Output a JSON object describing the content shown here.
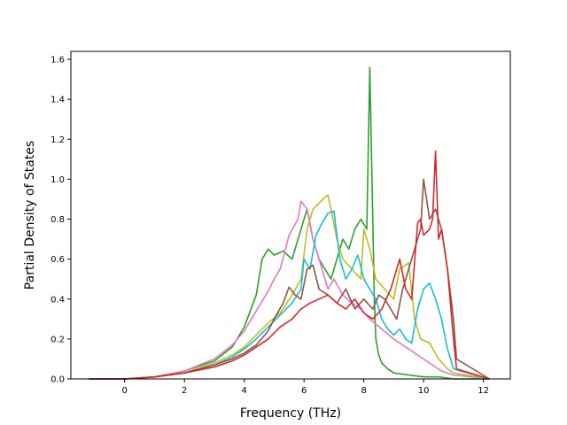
{
  "chart_data": {
    "type": "line",
    "title": "",
    "xlabel": "Frequency (THz)",
    "ylabel": "Partial Density of States",
    "xlim": [
      -1.8,
      12.9
    ],
    "ylim": [
      0.0,
      1.64
    ],
    "xticks": [
      0,
      2,
      4,
      6,
      8,
      10,
      12
    ],
    "yticks": [
      0.0,
      0.2,
      0.4,
      0.6,
      0.8,
      1.0,
      1.2,
      1.4,
      1.6
    ],
    "xtick_labels": [
      "0",
      "2",
      "4",
      "6",
      "8",
      "10",
      "12"
    ],
    "ytick_labels": [
      "0.0",
      "0.2",
      "0.4",
      "0.6",
      "0.8",
      "1.0",
      "1.2",
      "1.4",
      "1.6"
    ],
    "grid": false,
    "series": [
      {
        "color": "#2ca02c",
        "x": [
          -1.2,
          0.0,
          1.0,
          2.0,
          3.0,
          3.6,
          4.0,
          4.4,
          4.6,
          4.8,
          5.0,
          5.3,
          5.6,
          5.8,
          6.0,
          6.1,
          6.3,
          6.5,
          6.7,
          6.9,
          7.1,
          7.3,
          7.5,
          7.7,
          7.9,
          8.1,
          8.2,
          8.3,
          8.35,
          8.4,
          8.5,
          8.6,
          8.8,
          9.0,
          9.5,
          10.0,
          10.5,
          11.0,
          12.2
        ],
        "y": [
          0,
          0,
          0.01,
          0.04,
          0.09,
          0.16,
          0.26,
          0.42,
          0.6,
          0.65,
          0.62,
          0.64,
          0.6,
          0.7,
          0.8,
          0.85,
          0.7,
          0.6,
          0.55,
          0.5,
          0.6,
          0.7,
          0.65,
          0.75,
          0.8,
          0.75,
          1.56,
          0.8,
          0.4,
          0.2,
          0.12,
          0.08,
          0.05,
          0.03,
          0.02,
          0.01,
          0.01,
          0,
          0
        ]
      },
      {
        "color": "#e377c2",
        "x": [
          -1.2,
          0.0,
          1.0,
          2.0,
          3.0,
          3.6,
          4.0,
          4.4,
          4.8,
          5.0,
          5.2,
          5.5,
          5.8,
          5.9,
          6.1,
          6.3,
          6.5,
          6.8,
          7.0,
          7.3,
          7.6,
          7.9,
          8.2,
          8.6,
          9.0,
          9.4,
          9.8,
          10.2,
          10.6,
          11.0,
          12.2
        ],
        "y": [
          0,
          0,
          0.01,
          0.04,
          0.1,
          0.17,
          0.24,
          0.34,
          0.44,
          0.5,
          0.55,
          0.72,
          0.8,
          0.89,
          0.85,
          0.7,
          0.6,
          0.45,
          0.5,
          0.42,
          0.38,
          0.35,
          0.3,
          0.25,
          0.2,
          0.16,
          0.12,
          0.08,
          0.04,
          0.02,
          0
        ]
      },
      {
        "color": "#bcbd22",
        "x": [
          -1.2,
          0.0,
          1.0,
          2.0,
          3.0,
          3.6,
          4.0,
          4.4,
          4.8,
          5.2,
          5.6,
          5.9,
          6.1,
          6.3,
          6.5,
          6.7,
          6.8,
          6.9,
          7.1,
          7.3,
          7.6,
          7.9,
          8.0,
          8.2,
          8.4,
          8.7,
          9.0,
          9.2,
          9.5,
          9.7,
          9.9,
          10.2,
          10.5,
          10.8,
          11.0,
          12.2
        ],
        "y": [
          0,
          0,
          0.01,
          0.03,
          0.08,
          0.12,
          0.16,
          0.22,
          0.28,
          0.33,
          0.42,
          0.5,
          0.75,
          0.85,
          0.88,
          0.91,
          0.92,
          0.85,
          0.7,
          0.6,
          0.55,
          0.5,
          0.75,
          0.65,
          0.5,
          0.45,
          0.4,
          0.55,
          0.58,
          0.3,
          0.2,
          0.18,
          0.1,
          0.05,
          0.03,
          0
        ]
      },
      {
        "color": "#17becf",
        "x": [
          -1.2,
          0.0,
          1.0,
          2.0,
          3.0,
          3.6,
          4.0,
          4.4,
          4.8,
          5.2,
          5.6,
          5.9,
          6.0,
          6.2,
          6.4,
          6.6,
          6.8,
          7.0,
          7.2,
          7.4,
          7.6,
          7.8,
          8.0,
          8.2,
          8.4,
          8.6,
          8.8,
          9.0,
          9.2,
          9.4,
          9.6,
          9.8,
          10.0,
          10.2,
          10.4,
          10.6,
          10.8,
          11.0,
          12.2
        ],
        "y": [
          0,
          0,
          0.01,
          0.03,
          0.07,
          0.11,
          0.15,
          0.2,
          0.26,
          0.32,
          0.38,
          0.45,
          0.6,
          0.55,
          0.72,
          0.78,
          0.83,
          0.84,
          0.6,
          0.5,
          0.55,
          0.62,
          0.5,
          0.45,
          0.4,
          0.3,
          0.25,
          0.22,
          0.25,
          0.2,
          0.18,
          0.35,
          0.45,
          0.48,
          0.4,
          0.3,
          0.15,
          0.05,
          0
        ]
      },
      {
        "color": "#8c564b",
        "x": [
          -1.2,
          0.0,
          1.0,
          2.0,
          3.0,
          3.6,
          4.0,
          4.4,
          4.8,
          5.0,
          5.3,
          5.5,
          5.7,
          5.9,
          6.1,
          6.3,
          6.5,
          6.8,
          7.1,
          7.4,
          7.7,
          8.0,
          8.3,
          8.5,
          8.7,
          8.9,
          9.1,
          9.3,
          9.5,
          9.7,
          9.9,
          10.0,
          10.2,
          10.4,
          10.6,
          10.8,
          11.0,
          11.1,
          12.2
        ],
        "y": [
          0,
          0,
          0.01,
          0.03,
          0.07,
          0.1,
          0.13,
          0.17,
          0.24,
          0.3,
          0.38,
          0.46,
          0.42,
          0.4,
          0.55,
          0.57,
          0.45,
          0.42,
          0.38,
          0.45,
          0.35,
          0.4,
          0.35,
          0.42,
          0.4,
          0.35,
          0.3,
          0.45,
          0.55,
          0.65,
          0.75,
          1.0,
          0.8,
          0.85,
          0.75,
          0.55,
          0.3,
          0.1,
          0
        ]
      },
      {
        "color": "#d62728",
        "x": [
          -1.2,
          0.0,
          1.0,
          2.0,
          3.0,
          3.6,
          4.0,
          4.4,
          4.8,
          5.2,
          5.6,
          5.9,
          6.2,
          6.5,
          6.8,
          7.1,
          7.4,
          7.7,
          8.0,
          8.3,
          8.6,
          8.9,
          9.2,
          9.4,
          9.6,
          9.8,
          9.9,
          10.0,
          10.2,
          10.3,
          10.4,
          10.5,
          10.6,
          10.8,
          11.0,
          11.1,
          12.2
        ],
        "y": [
          0,
          0,
          0.01,
          0.03,
          0.06,
          0.09,
          0.12,
          0.16,
          0.2,
          0.26,
          0.3,
          0.35,
          0.38,
          0.4,
          0.42,
          0.38,
          0.35,
          0.4,
          0.33,
          0.3,
          0.35,
          0.45,
          0.6,
          0.45,
          0.4,
          0.78,
          0.8,
          0.72,
          0.75,
          0.8,
          1.14,
          0.7,
          0.75,
          0.55,
          0.2,
          0.05,
          0
        ]
      }
    ]
  }
}
